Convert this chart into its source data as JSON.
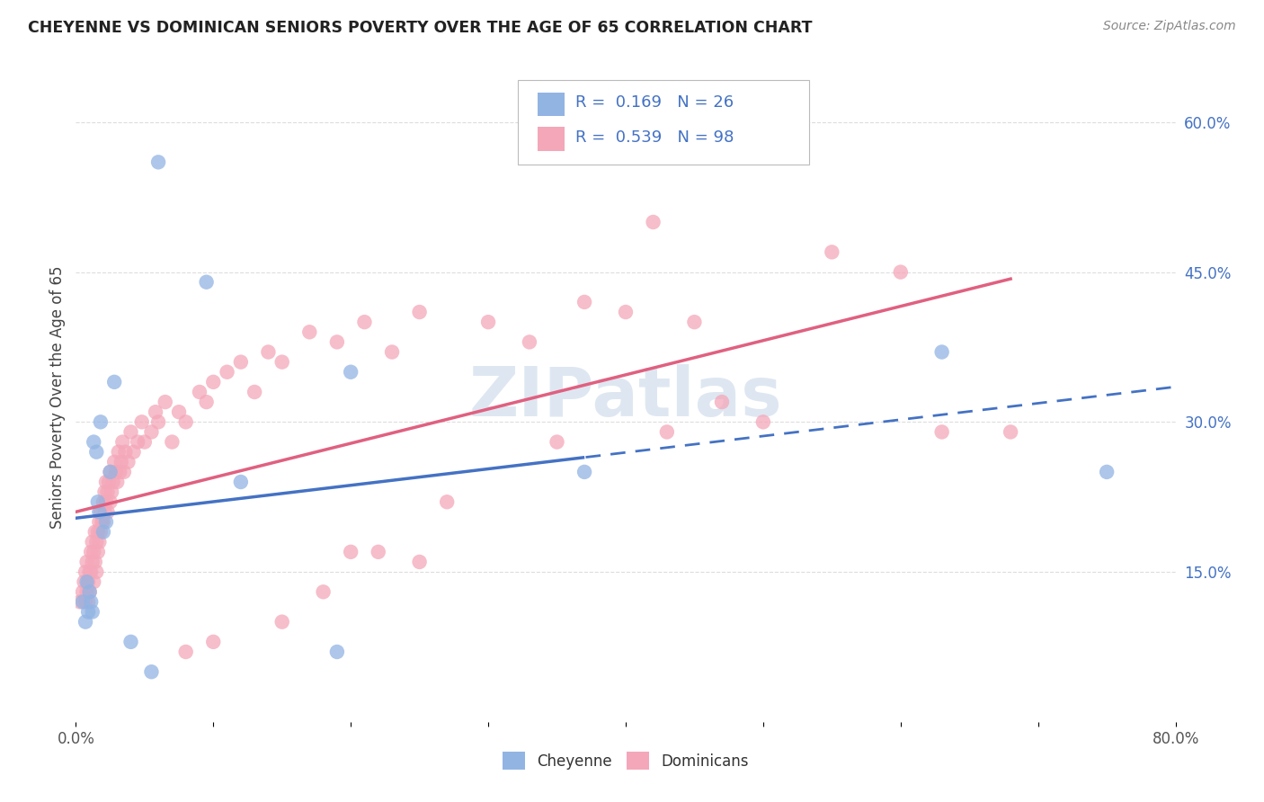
{
  "title": "CHEYENNE VS DOMINICAN SENIORS POVERTY OVER THE AGE OF 65 CORRELATION CHART",
  "source": "Source: ZipAtlas.com",
  "ylabel": "Seniors Poverty Over the Age of 65",
  "xlim": [
    0,
    0.8
  ],
  "ylim": [
    0,
    0.65
  ],
  "xtick_positions": [
    0.0,
    0.1,
    0.2,
    0.3,
    0.4,
    0.5,
    0.6,
    0.7,
    0.8
  ],
  "xtick_labels": [
    "0.0%",
    "",
    "",
    "",
    "",
    "",
    "",
    "",
    "80.0%"
  ],
  "yticks_right": [
    0.15,
    0.3,
    0.45,
    0.6
  ],
  "ytick_right_labels": [
    "15.0%",
    "30.0%",
    "45.0%",
    "60.0%"
  ],
  "cheyenne_color": "#92b4e3",
  "dominican_color": "#f4a7b9",
  "trend_blue": "#4472c4",
  "trend_pink": "#e06080",
  "cheyenne_R": 0.169,
  "cheyenne_N": 26,
  "dominican_R": 0.539,
  "dominican_N": 98,
  "cheyenne_x": [
    0.005,
    0.007,
    0.008,
    0.009,
    0.01,
    0.011,
    0.012,
    0.013,
    0.015,
    0.016,
    0.017,
    0.018,
    0.02,
    0.022,
    0.025,
    0.028,
    0.04,
    0.055,
    0.06,
    0.095,
    0.12,
    0.19,
    0.2,
    0.37,
    0.63,
    0.75
  ],
  "cheyenne_y": [
    0.12,
    0.1,
    0.14,
    0.11,
    0.13,
    0.12,
    0.11,
    0.28,
    0.27,
    0.22,
    0.21,
    0.3,
    0.19,
    0.2,
    0.25,
    0.34,
    0.08,
    0.05,
    0.56,
    0.44,
    0.24,
    0.07,
    0.35,
    0.25,
    0.37,
    0.25
  ],
  "dominican_x": [
    0.003,
    0.005,
    0.006,
    0.007,
    0.007,
    0.008,
    0.008,
    0.009,
    0.009,
    0.01,
    0.01,
    0.011,
    0.011,
    0.012,
    0.012,
    0.013,
    0.013,
    0.014,
    0.014,
    0.015,
    0.015,
    0.016,
    0.016,
    0.017,
    0.017,
    0.018,
    0.018,
    0.019,
    0.02,
    0.02,
    0.021,
    0.021,
    0.022,
    0.022,
    0.023,
    0.023,
    0.024,
    0.025,
    0.025,
    0.026,
    0.027,
    0.028,
    0.029,
    0.03,
    0.031,
    0.032,
    0.033,
    0.034,
    0.035,
    0.036,
    0.038,
    0.04,
    0.042,
    0.045,
    0.048,
    0.05,
    0.055,
    0.058,
    0.06,
    0.065,
    0.07,
    0.075,
    0.08,
    0.09,
    0.095,
    0.1,
    0.11,
    0.12,
    0.13,
    0.14,
    0.15,
    0.17,
    0.19,
    0.21,
    0.23,
    0.25,
    0.3,
    0.33,
    0.37,
    0.4,
    0.43,
    0.47,
    0.5,
    0.55,
    0.6,
    0.63,
    0.68,
    0.45,
    0.2,
    0.25,
    0.1,
    0.08,
    0.15,
    0.18,
    0.22,
    0.27,
    0.35,
    0.42
  ],
  "dominican_y": [
    0.12,
    0.13,
    0.14,
    0.12,
    0.15,
    0.13,
    0.16,
    0.14,
    0.12,
    0.15,
    0.13,
    0.17,
    0.15,
    0.16,
    0.18,
    0.14,
    0.17,
    0.19,
    0.16,
    0.18,
    0.15,
    0.19,
    0.17,
    0.2,
    0.18,
    0.21,
    0.19,
    0.2,
    0.22,
    0.2,
    0.21,
    0.23,
    0.22,
    0.24,
    0.21,
    0.23,
    0.24,
    0.22,
    0.25,
    0.23,
    0.24,
    0.26,
    0.25,
    0.24,
    0.27,
    0.25,
    0.26,
    0.28,
    0.25,
    0.27,
    0.26,
    0.29,
    0.27,
    0.28,
    0.3,
    0.28,
    0.29,
    0.31,
    0.3,
    0.32,
    0.28,
    0.31,
    0.3,
    0.33,
    0.32,
    0.34,
    0.35,
    0.36,
    0.33,
    0.37,
    0.36,
    0.39,
    0.38,
    0.4,
    0.37,
    0.41,
    0.4,
    0.38,
    0.42,
    0.41,
    0.29,
    0.32,
    0.3,
    0.47,
    0.45,
    0.29,
    0.29,
    0.4,
    0.17,
    0.16,
    0.08,
    0.07,
    0.1,
    0.13,
    0.17,
    0.22,
    0.28,
    0.5
  ],
  "background_color": "#ffffff",
  "grid_color": "#dddddd",
  "watermark_text": "ZIPatlas",
  "watermark_color": "#c8d8e8"
}
